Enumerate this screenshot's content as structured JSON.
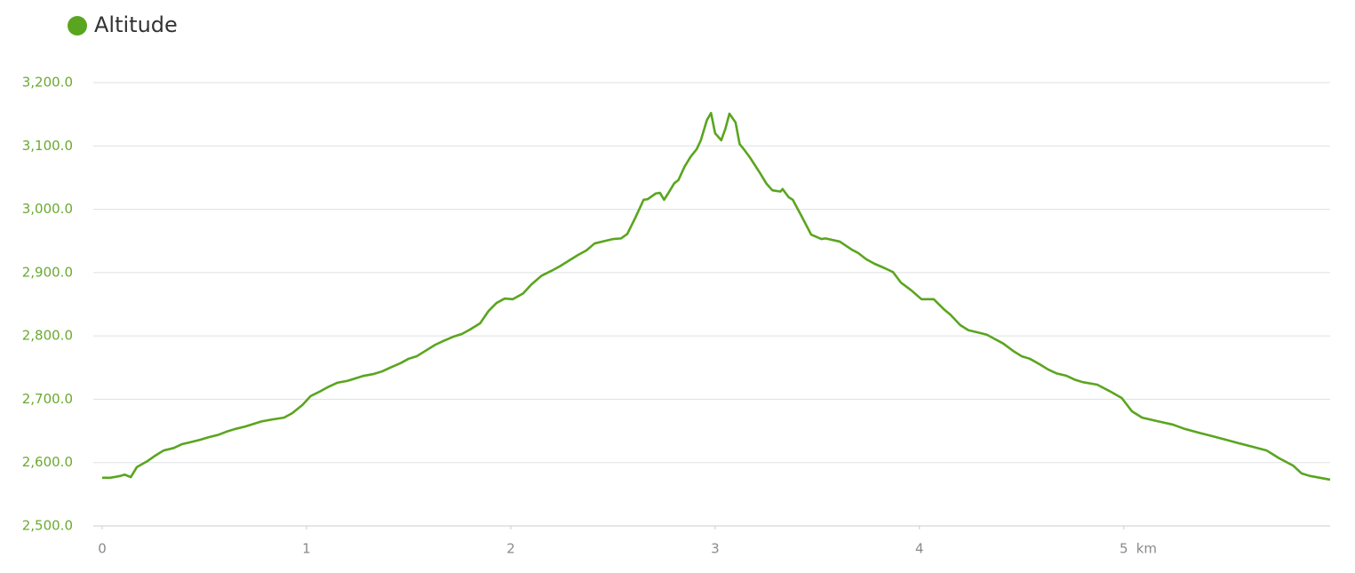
{
  "chart_data": {
    "type": "line",
    "x_label": "km",
    "series": [
      {
        "name": "Altitude",
        "color": "#5aa51f",
        "x": [
          0,
          0.04,
          0.09,
          0.11,
          0.14,
          0.17,
          0.22,
          0.26,
          0.3,
          0.35,
          0.39,
          0.43,
          0.48,
          0.52,
          0.57,
          0.61,
          0.65,
          0.7,
          0.74,
          0.78,
          0.83,
          0.89,
          0.93,
          0.98,
          1.02,
          1.07,
          1.11,
          1.15,
          1.2,
          1.24,
          1.28,
          1.33,
          1.37,
          1.41,
          1.46,
          1.5,
          1.54,
          1.59,
          1.63,
          1.67,
          1.72,
          1.76,
          1.8,
          1.85,
          1.89,
          1.93,
          1.97,
          2.01,
          2.06,
          2.1,
          2.15,
          2.2,
          2.24,
          2.28,
          2.33,
          2.37,
          2.41,
          2.46,
          2.5,
          2.54,
          2.57,
          2.61,
          2.65,
          2.67,
          2.71,
          2.73,
          2.75,
          2.77,
          2.8,
          2.82,
          2.85,
          2.88,
          2.91,
          2.93,
          2.96,
          2.98,
          3.0,
          3.03,
          3.05,
          3.07,
          3.1,
          3.12,
          3.14,
          3.17,
          3.22,
          3.25,
          3.28,
          3.32,
          3.33,
          3.36,
          3.38,
          3.42,
          3.47,
          3.52,
          3.54,
          3.61,
          3.67,
          3.7,
          3.74,
          3.78,
          3.83,
          3.87,
          3.91,
          3.96,
          4.01,
          4.04,
          4.07,
          4.12,
          4.15,
          4.2,
          4.24,
          4.28,
          4.33,
          4.37,
          4.41,
          4.46,
          4.5,
          4.54,
          4.59,
          4.63,
          4.67,
          4.72,
          4.76,
          4.8,
          4.87,
          4.93,
          4.99,
          5.04,
          5.09,
          5.13,
          5.17,
          5.24,
          5.3,
          5.37,
          5.43,
          5.5,
          5.57,
          5.63,
          5.7,
          5.76,
          5.83,
          5.87,
          5.91,
          5.96,
          6.01
        ],
        "values": [
          2576,
          2576,
          2579,
          2581,
          2577,
          2593,
          2602,
          2611,
          2619,
          2623,
          2629,
          2632,
          2636,
          2640,
          2644,
          2649,
          2653,
          2657,
          2661,
          2665,
          2668,
          2671,
          2678,
          2691,
          2705,
          2713,
          2720,
          2726,
          2729,
          2733,
          2737,
          2740,
          2744,
          2750,
          2757,
          2764,
          2768,
          2778,
          2786,
          2792,
          2799,
          2803,
          2810,
          2820,
          2839,
          2852,
          2859,
          2858,
          2867,
          2881,
          2895,
          2903,
          2910,
          2918,
          2928,
          2935,
          2946,
          2950,
          2953,
          2954,
          2961,
          2987,
          3015,
          3016,
          3025,
          3026,
          3015,
          3025,
          3041,
          3046,
          3067,
          3083,
          3095,
          3109,
          3141,
          3152,
          3120,
          3109,
          3127,
          3151,
          3137,
          3103,
          3095,
          3082,
          3057,
          3041,
          3030,
          3028,
          3032,
          3019,
          3015,
          2991,
          2960,
          2953,
          2954,
          2949,
          2936,
          2931,
          2921,
          2914,
          2907,
          2901,
          2884,
          2872,
          2858,
          2858,
          2858,
          2842,
          2834,
          2817,
          2809,
          2806,
          2802,
          2795,
          2788,
          2776,
          2768,
          2764,
          2755,
          2747,
          2741,
          2737,
          2731,
          2727,
          2723,
          2713,
          2702,
          2681,
          2671,
          2668,
          2665,
          2660,
          2653,
          2647,
          2642,
          2636,
          2630,
          2625,
          2619,
          2607,
          2595,
          2583,
          2579,
          2576,
          2573
        ]
      }
    ],
    "xlim": [
      0,
      6.01
    ],
    "xticks": [
      0,
      1,
      2,
      3,
      4,
      5
    ],
    "ylim": [
      2500,
      3200
    ],
    "yticks": [
      {
        "value": 2500,
        "label": "2,500.0"
      },
      {
        "value": 2600,
        "label": "2,600.0"
      },
      {
        "value": 2700,
        "label": "2,700.0"
      },
      {
        "value": 2800,
        "label": "2,800.0"
      },
      {
        "value": 2900,
        "label": "2,900.0"
      },
      {
        "value": 3000,
        "label": "3,000.0"
      },
      {
        "value": 3100,
        "label": "3,100.0"
      },
      {
        "value": 3200,
        "label": "3,200.0"
      }
    ],
    "grid": true
  }
}
